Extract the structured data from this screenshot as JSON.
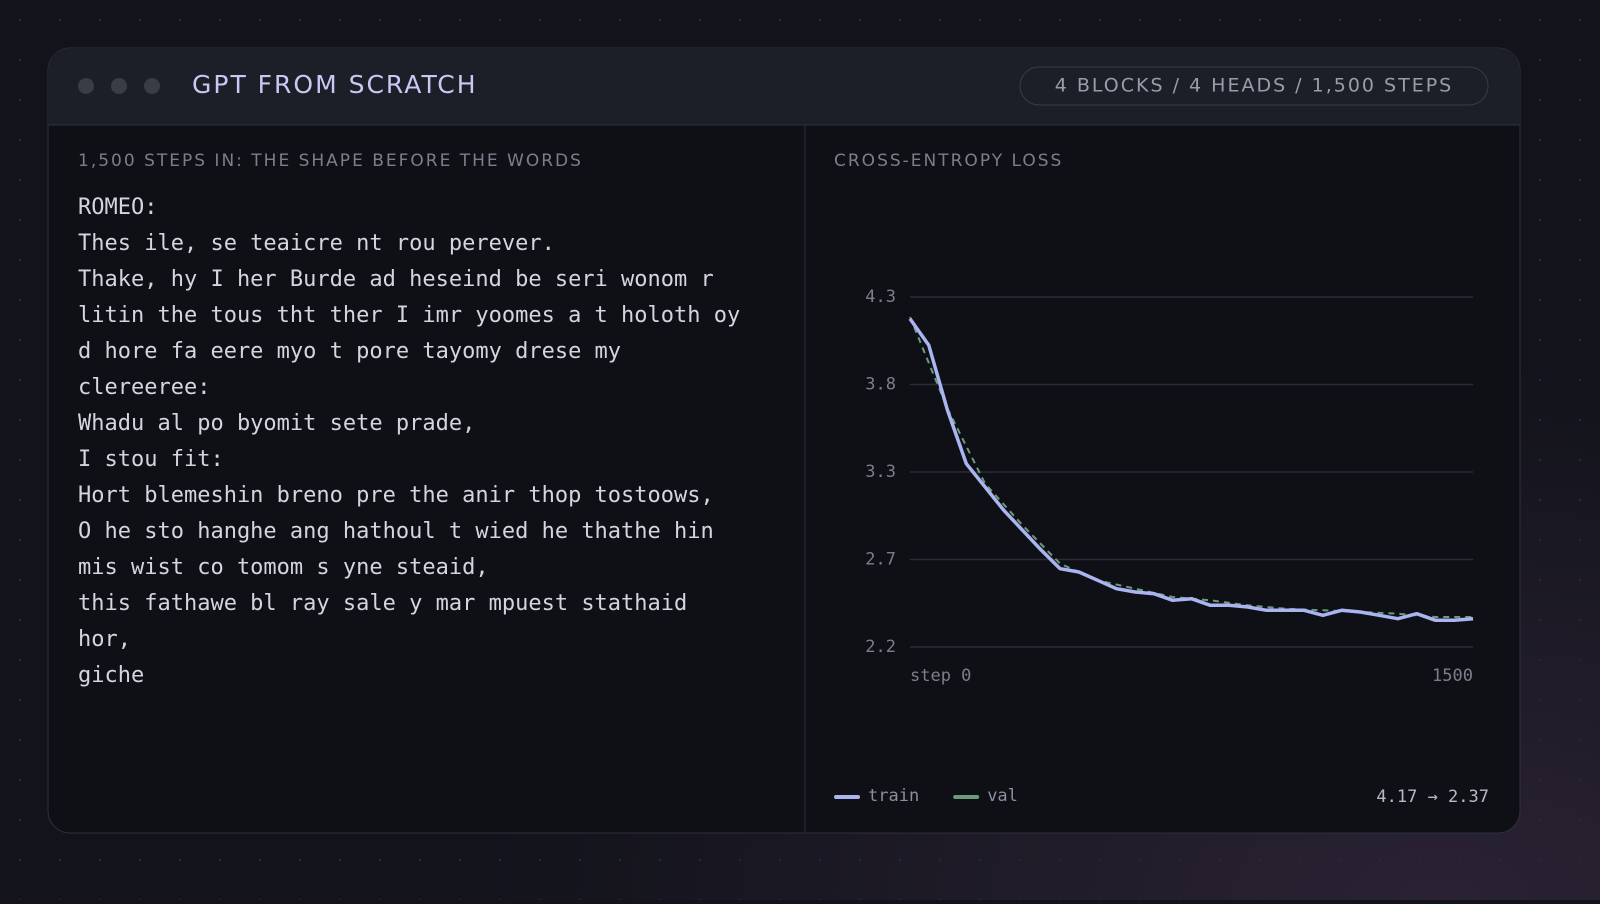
{
  "header": {
    "title": "GPT FROM SCRATCH",
    "badge": "4 BLOCKS / 4 HEADS / 1,500 STEPS"
  },
  "sample": {
    "label": "1,500 STEPS IN: THE SHAPE BEFORE THE WORDS",
    "lines": [
      "ROMEO:",
      "Thes ile, se teaicre nt rou perever.",
      "Thake, hy I her Burde ad heseind be seri wonom r",
      "litin the tous tht ther I imr yoomes a t holoth oy",
      "d hore fa eere myo t pore tayomy drese my",
      "clereeree:",
      "Whadu al po byomit sete prade,",
      "I stou fit:",
      "Hort blemeshin breno pre the anir thop tostoows,",
      "O he sto hanghe ang hathoul t wied he thathe hin",
      "mis wist co tomom s yne steaid,",
      "this fathawe bl ray sale y mar mpuest stathaid",
      "hor,",
      "giche"
    ]
  },
  "chart_data": {
    "type": "line",
    "title": "CROSS-ENTROPY LOSS",
    "summary": "4.17 → 2.37",
    "xlim": [
      0,
      1500
    ],
    "xticks": [
      {
        "value": 0,
        "label": "step 0"
      },
      1500
    ],
    "ylim": [
      2.2,
      4.3
    ],
    "yticks": [
      2.2,
      {
        "value": 2.725,
        "label": "2.7"
      },
      {
        "value": 3.25,
        "label": "3.3"
      },
      {
        "value": 3.775,
        "label": "3.8"
      },
      4.3
    ],
    "grid": true,
    "series": [
      {
        "name": "train",
        "color": "#a9b4f0",
        "dash": false,
        "x": [
          0,
          50,
          100,
          150,
          200,
          250,
          300,
          350,
          400,
          450,
          500,
          550,
          600,
          650,
          700,
          750,
          800,
          850,
          900,
          950,
          1000,
          1050,
          1100,
          1150,
          1200,
          1250,
          1300,
          1350,
          1400,
          1450,
          1500
        ],
        "values": [
          4.17,
          4.01,
          3.62,
          3.3,
          3.16,
          3.02,
          2.9,
          2.78,
          2.67,
          2.65,
          2.6,
          2.55,
          2.53,
          2.52,
          2.48,
          2.49,
          2.45,
          2.45,
          2.44,
          2.42,
          2.42,
          2.42,
          2.39,
          2.42,
          2.41,
          2.39,
          2.37,
          2.4,
          2.36,
          2.36,
          2.37
        ]
      },
      {
        "name": "val",
        "color": "#6b9a7c",
        "dash": true,
        "x": [
          0,
          100,
          200,
          300,
          400,
          500,
          600,
          700,
          800,
          900,
          1000,
          1100,
          1200,
          1300,
          1400,
          1500
        ],
        "values": [
          4.18,
          3.63,
          3.18,
          2.93,
          2.7,
          2.6,
          2.55,
          2.5,
          2.48,
          2.45,
          2.43,
          2.42,
          2.41,
          2.4,
          2.38,
          2.38
        ]
      }
    ]
  }
}
